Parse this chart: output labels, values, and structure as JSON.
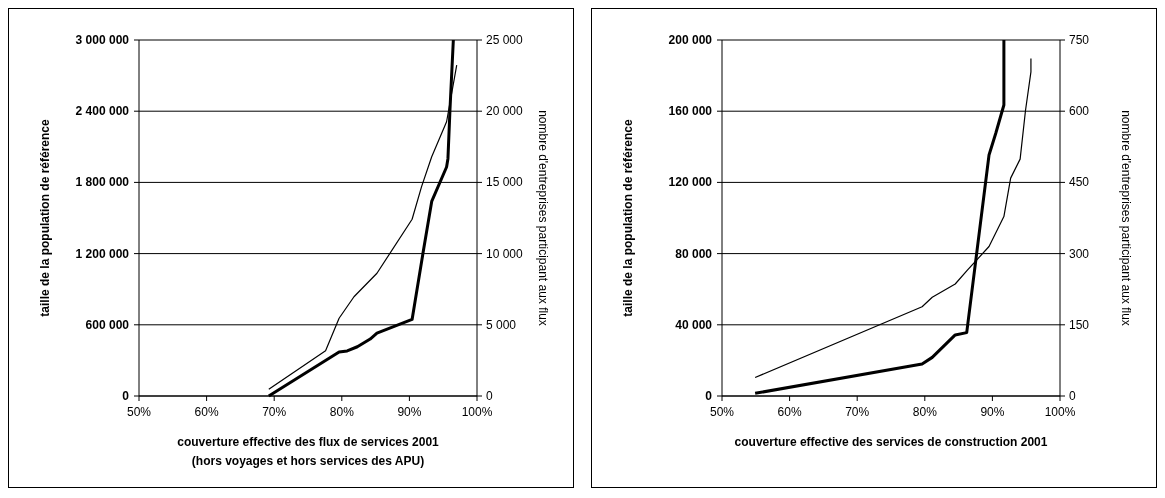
{
  "chart_data": [
    {
      "type": "line",
      "xlabel": "couverture effective des flux de services 2001\n(hors voyages et hors services des APU)",
      "ylabel": "taille de la population de référence",
      "y2label": "nombre d'entreprises participant aux flux",
      "xlim": [
        50,
        100
      ],
      "xticks": [
        {
          "value": 50,
          "label": "50%"
        },
        {
          "value": 60,
          "label": "60%"
        },
        {
          "value": 70,
          "label": "70%"
        },
        {
          "value": 80,
          "label": "80%"
        },
        {
          "value": 90,
          "label": "90%"
        },
        {
          "value": 100,
          "label": "100%"
        }
      ],
      "ylim": [
        0,
        3000000
      ],
      "yticks": [
        {
          "value": 0,
          "label": "0"
        },
        {
          "value": 600000,
          "label": "600 000"
        },
        {
          "value": 1200000,
          "label": "1 200 000"
        },
        {
          "value": 1800000,
          "label": "1 800 000"
        },
        {
          "value": 2400000,
          "label": "2 400 000"
        },
        {
          "value": 3000000,
          "label": "3 000 000"
        }
      ],
      "y2lim": [
        0,
        25000
      ],
      "y2ticks": [
        {
          "value": 0,
          "label": "0"
        },
        {
          "value": 5000,
          "label": "5 000"
        },
        {
          "value": 10000,
          "label": "10 000"
        },
        {
          "value": 15000,
          "label": "15 000"
        },
        {
          "value": 20000,
          "label": "20 000"
        },
        {
          "value": 25000,
          "label": "25 000"
        }
      ],
      "grid": "y",
      "marker": "none",
      "series": [
        {
          "color": "#000000",
          "x": [
            69.2,
            79.6,
            80.8,
            82.3,
            84.2,
            85.2,
            90.4,
            92.0,
            93.3,
            95.5,
            95.7,
            96.0,
            96.5
          ],
          "values": [
            0,
            370000,
            380000,
            415000,
            480000,
            530000,
            645000,
            1200000,
            1640000,
            1930000,
            2000000,
            2410000,
            3000000
          ]
        },
        {
          "color": "#000000",
          "axis": "y2",
          "x": [
            69.2,
            77.6,
            79.6,
            81.8,
            85.2,
            90.4,
            91.8,
            93.3,
            95.5,
            97.0
          ],
          "values": [
            470,
            3180,
            5460,
            6970,
            8620,
            12410,
            14700,
            16800,
            19260,
            23240
          ]
        }
      ]
    },
    {
      "type": "line",
      "xlabel": "couverture effective des services de construction 2001",
      "ylabel": "taille de la population de référence",
      "y2label": "nombre d'entreprises participant aux flux",
      "xlim": [
        50,
        100
      ],
      "xticks": [
        {
          "value": 50,
          "label": "50%"
        },
        {
          "value": 60,
          "label": "60%"
        },
        {
          "value": 70,
          "label": "70%"
        },
        {
          "value": 80,
          "label": "80%"
        },
        {
          "value": 90,
          "label": "90%"
        },
        {
          "value": 100,
          "label": "100%"
        }
      ],
      "ylim": [
        0,
        200000
      ],
      "yticks": [
        {
          "value": 0,
          "label": "0"
        },
        {
          "value": 40000,
          "label": "40 000"
        },
        {
          "value": 80000,
          "label": "80 000"
        },
        {
          "value": 120000,
          "label": "120 000"
        },
        {
          "value": 160000,
          "label": "160 000"
        },
        {
          "value": 200000,
          "label": "200 000"
        }
      ],
      "y2lim": [
        0,
        750
      ],
      "y2ticks": [
        0,
        150,
        300,
        450,
        600,
        750
      ],
      "grid": "y",
      "marker": "none",
      "series": [
        {
          "color": "#000000",
          "x": [
            54.9,
            79.6,
            81.1,
            84.5,
            86.2,
            89.5,
            90.5,
            91.7,
            91.7
          ],
          "values": [
            1500,
            18000,
            21700,
            34300,
            35600,
            135400,
            147600,
            163500,
            200000
          ]
        },
        {
          "color": "#000000",
          "axis": "y2",
          "x": [
            54.9,
            79.6,
            81.1,
            84.5,
            86.3,
            89.5,
            91.7,
            92.7,
            94.1,
            94.9,
            95.7,
            95.7
          ],
          "values": [
            39,
            188,
            208,
            236,
            265,
            315,
            378,
            459,
            499,
            602,
            683,
            711
          ]
        }
      ]
    }
  ]
}
